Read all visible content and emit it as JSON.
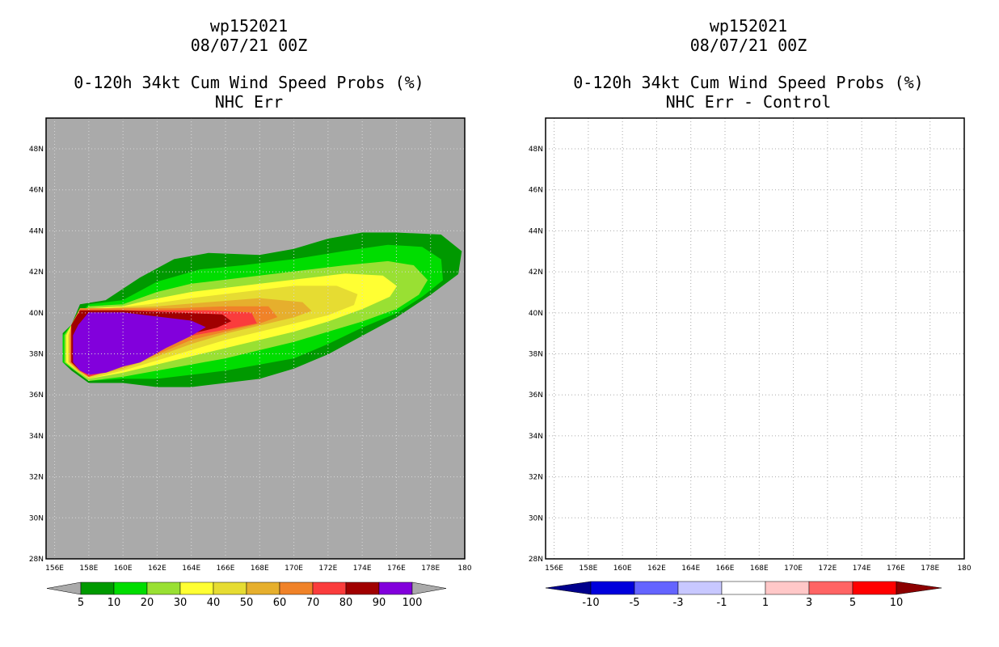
{
  "chart_data": [
    {
      "type": "heatmap",
      "storm_id": "wp152021",
      "date": "08/07/21 00Z",
      "title": "0-120h 34kt Cum Wind Speed Probs (%)",
      "subtitle": "NHC Err",
      "x_ticks": [
        "156E",
        "158E",
        "160E",
        "162E",
        "164E",
        "166E",
        "168E",
        "170E",
        "172E",
        "174E",
        "176E",
        "178E",
        "180"
      ],
      "y_ticks": [
        "28N",
        "30N",
        "32N",
        "34N",
        "36N",
        "38N",
        "40N",
        "42N",
        "44N",
        "46N",
        "48N"
      ],
      "xlim": [
        155.5,
        180
      ],
      "ylim": [
        28,
        49.5
      ],
      "background": "#aaaaaa",
      "levels": [
        {
          "min": 5,
          "color": "#009900",
          "polygon": [
            [
              158,
              36.6
            ],
            [
              160,
              36.6
            ],
            [
              162,
              36.4
            ],
            [
              164,
              36.4
            ],
            [
              166,
              36.6
            ],
            [
              168,
              36.8
            ],
            [
              170,
              37.3
            ],
            [
              172,
              38
            ],
            [
              174,
              38.9
            ],
            [
              176,
              39.8
            ],
            [
              178,
              40.9
            ],
            [
              179.6,
              41.9
            ],
            [
              179.8,
              43
            ],
            [
              178.6,
              43.8
            ],
            [
              176,
              43.9
            ],
            [
              174,
              43.9
            ],
            [
              172,
              43.6
            ],
            [
              170,
              43.1
            ],
            [
              168,
              42.8
            ],
            [
              165,
              42.9
            ],
            [
              163,
              42.6
            ],
            [
              161,
              41.7
            ],
            [
              159,
              40.6
            ],
            [
              157.5,
              40.4
            ],
            [
              157,
              39.4
            ],
            [
              156.5,
              39
            ],
            [
              156.5,
              37.6
            ],
            [
              157,
              37.2
            ],
            [
              158,
              36.6
            ]
          ]
        },
        {
          "min": 10,
          "color": "#00dd00",
          "polygon": [
            [
              158,
              36.7
            ],
            [
              160,
              36.8
            ],
            [
              162,
              36.8
            ],
            [
              164,
              37
            ],
            [
              166,
              37.2
            ],
            [
              168,
              37.5
            ],
            [
              170,
              37.8
            ],
            [
              172,
              38.5
            ],
            [
              174,
              39.3
            ],
            [
              176,
              40
            ],
            [
              177.5,
              40.8
            ],
            [
              178.7,
              41.6
            ],
            [
              178.6,
              42.6
            ],
            [
              177.5,
              43.2
            ],
            [
              175.5,
              43.3
            ],
            [
              173,
              43
            ],
            [
              170,
              42.6
            ],
            [
              167,
              42.3
            ],
            [
              164.5,
              42.1
            ],
            [
              162,
              41.5
            ],
            [
              160,
              40.6
            ],
            [
              158,
              40.4
            ],
            [
              157,
              39.4
            ],
            [
              156.5,
              38.9
            ],
            [
              156.5,
              37.6
            ],
            [
              157.2,
              37.2
            ],
            [
              158,
              36.7
            ]
          ]
        },
        {
          "min": 20,
          "color": "#99e033",
          "polygon": [
            [
              158,
              36.7
            ],
            [
              160,
              36.9
            ],
            [
              162,
              37.2
            ],
            [
              164,
              37.5
            ],
            [
              166,
              37.8
            ],
            [
              168,
              38.2
            ],
            [
              170,
              38.6
            ],
            [
              172,
              39.1
            ],
            [
              174,
              39.6
            ],
            [
              176,
              40.2
            ],
            [
              177.3,
              40.9
            ],
            [
              177.8,
              41.6
            ],
            [
              177,
              42.3
            ],
            [
              175.5,
              42.5
            ],
            [
              173,
              42.3
            ],
            [
              170,
              42
            ],
            [
              167,
              41.7
            ],
            [
              164,
              41.4
            ],
            [
              162,
              41
            ],
            [
              160,
              40.4
            ],
            [
              158,
              40.3
            ],
            [
              157,
              39.4
            ],
            [
              156.6,
              38.9
            ],
            [
              156.6,
              37.6
            ],
            [
              157.2,
              37.2
            ],
            [
              158,
              36.7
            ]
          ]
        },
        {
          "min": 30,
          "color": "#ffff33",
          "polygon": [
            [
              158,
              36.8
            ],
            [
              160,
              37.1
            ],
            [
              162,
              37.5
            ],
            [
              164,
              37.9
            ],
            [
              166,
              38.3
            ],
            [
              168,
              38.7
            ],
            [
              170,
              39.1
            ],
            [
              172,
              39.6
            ],
            [
              174,
              40.2
            ],
            [
              175.6,
              40.8
            ],
            [
              176,
              41.3
            ],
            [
              175.2,
              41.8
            ],
            [
              173,
              41.9
            ],
            [
              170,
              41.6
            ],
            [
              167,
              41.3
            ],
            [
              164,
              41
            ],
            [
              161.5,
              40.6
            ],
            [
              160,
              40.3
            ],
            [
              158,
              40.2
            ],
            [
              157,
              39.4
            ],
            [
              156.7,
              38.9
            ],
            [
              156.7,
              37.6
            ],
            [
              157.3,
              37.2
            ],
            [
              158,
              36.8
            ]
          ]
        },
        {
          "min": 40,
          "color": "#e6dc32",
          "polygon": [
            [
              158,
              36.8
            ],
            [
              160,
              37.2
            ],
            [
              162,
              37.7
            ],
            [
              164,
              38.2
            ],
            [
              166,
              38.7
            ],
            [
              168,
              39.1
            ],
            [
              170,
              39.5
            ],
            [
              172,
              39.9
            ],
            [
              173.5,
              40.4
            ],
            [
              173.7,
              40.9
            ],
            [
              172.5,
              41.3
            ],
            [
              170,
              41.3
            ],
            [
              167,
              41
            ],
            [
              164,
              40.7
            ],
            [
              161.5,
              40.4
            ],
            [
              159,
              40.2
            ],
            [
              157.5,
              40.2
            ],
            [
              157,
              39.4
            ],
            [
              156.8,
              38.9
            ],
            [
              156.8,
              37.6
            ],
            [
              157.3,
              37.2
            ],
            [
              158,
              36.8
            ]
          ]
        },
        {
          "min": 50,
          "color": "#e6af2d",
          "polygon": [
            [
              158,
              36.9
            ],
            [
              160,
              37.3
            ],
            [
              162,
              37.9
            ],
            [
              164,
              38.5
            ],
            [
              166,
              39
            ],
            [
              168,
              39.4
            ],
            [
              170,
              39.8
            ],
            [
              171,
              40.1
            ],
            [
              170.5,
              40.5
            ],
            [
              168,
              40.7
            ],
            [
              165,
              40.5
            ],
            [
              162,
              40.3
            ],
            [
              159,
              40.2
            ],
            [
              157.5,
              40.2
            ],
            [
              157,
              39.4
            ],
            [
              156.9,
              38.9
            ],
            [
              156.9,
              37.6
            ],
            [
              157.4,
              37.2
            ],
            [
              158,
              36.9
            ]
          ]
        },
        {
          "min": 60,
          "color": "#f08228",
          "polygon": [
            [
              158,
              36.9
            ],
            [
              160,
              37.4
            ],
            [
              162,
              38
            ],
            [
              164,
              38.7
            ],
            [
              166,
              39.1
            ],
            [
              168,
              39.5
            ],
            [
              169,
              39.8
            ],
            [
              168.5,
              40.3
            ],
            [
              166,
              40.3
            ],
            [
              163,
              40.2
            ],
            [
              160,
              40.2
            ],
            [
              157.5,
              40.2
            ],
            [
              157,
              39.4
            ],
            [
              156.9,
              38.9
            ],
            [
              156.9,
              37.6
            ],
            [
              157.4,
              37.2
            ],
            [
              158,
              36.9
            ]
          ]
        },
        {
          "min": 70,
          "color": "#fa3c3c",
          "polygon": [
            [
              158,
              36.9
            ],
            [
              160,
              37.4
            ],
            [
              162,
              38.2
            ],
            [
              164,
              38.9
            ],
            [
              166,
              39.2
            ],
            [
              167.8,
              39.5
            ],
            [
              167.5,
              40
            ],
            [
              165,
              40.1
            ],
            [
              162,
              40.1
            ],
            [
              159,
              40.1
            ],
            [
              157.5,
              40.1
            ],
            [
              157,
              39.4
            ],
            [
              157,
              38.9
            ],
            [
              157,
              37.6
            ],
            [
              157.5,
              37.2
            ],
            [
              158,
              36.9
            ]
          ]
        },
        {
          "min": 80,
          "color": "#a00000",
          "polygon": [
            [
              158,
              37
            ],
            [
              160,
              37.5
            ],
            [
              162,
              38.4
            ],
            [
              164,
              39
            ],
            [
              165.5,
              39.3
            ],
            [
              166.3,
              39.6
            ],
            [
              165.8,
              39.9
            ],
            [
              163,
              40
            ],
            [
              160,
              40.1
            ],
            [
              157.5,
              40.1
            ],
            [
              157,
              39.4
            ],
            [
              157,
              38.9
            ],
            [
              157,
              37.6
            ],
            [
              157.5,
              37.2
            ],
            [
              158,
              37
            ]
          ]
        },
        {
          "min": 90,
          "color": "#8200dc",
          "polygon": [
            [
              158,
              37
            ],
            [
              159,
              37.1
            ],
            [
              160,
              37.4
            ],
            [
              161,
              37.6
            ],
            [
              162.5,
              38.3
            ],
            [
              164,
              38.9
            ],
            [
              164.8,
              39.3
            ],
            [
              164,
              39.6
            ],
            [
              162,
              39.8
            ],
            [
              160,
              40
            ],
            [
              158,
              40
            ],
            [
              157.4,
              39.4
            ],
            [
              157.1,
              38.9
            ],
            [
              157.1,
              37.6
            ],
            [
              157.5,
              37.2
            ],
            [
              158,
              37
            ]
          ]
        }
      ],
      "colorbar": {
        "labels": [
          "5",
          "10",
          "20",
          "30",
          "40",
          "50",
          "60",
          "70",
          "80",
          "90",
          "100"
        ],
        "colors": [
          "#009900",
          "#00dd00",
          "#99e033",
          "#ffff33",
          "#e6dc32",
          "#e6af2d",
          "#f08228",
          "#fa3c3c",
          "#a00000",
          "#8200dc"
        ],
        "arrow_low_color": "#aaaaaa",
        "arrow_high_color": "#aaaaaa"
      }
    },
    {
      "type": "heatmap",
      "storm_id": "wp152021",
      "date": "08/07/21 00Z",
      "title": "0-120h 34kt Cum Wind Speed Probs (%)",
      "subtitle": "NHC Err - Control",
      "x_ticks": [
        "156E",
        "158E",
        "160E",
        "162E",
        "164E",
        "166E",
        "168E",
        "170E",
        "172E",
        "174E",
        "176E",
        "178E",
        "180"
      ],
      "y_ticks": [
        "28N",
        "30N",
        "32N",
        "34N",
        "36N",
        "38N",
        "40N",
        "42N",
        "44N",
        "46N",
        "48N"
      ],
      "xlim": [
        155.5,
        180
      ],
      "ylim": [
        28,
        49.5
      ],
      "background": "#ffffff",
      "grid": true,
      "levels": [],
      "colorbar": {
        "labels": [
          "-10",
          "-5",
          "-3",
          "-1",
          "1",
          "3",
          "5",
          "10"
        ],
        "colors": [
          "#0000dc",
          "#6464ff",
          "#c8c8ff",
          "#ffffff",
          "#ffc8c8",
          "#ff6464",
          "#ff0000"
        ],
        "arrow_low_color": "#00008c",
        "arrow_high_color": "#8c0000"
      }
    }
  ]
}
